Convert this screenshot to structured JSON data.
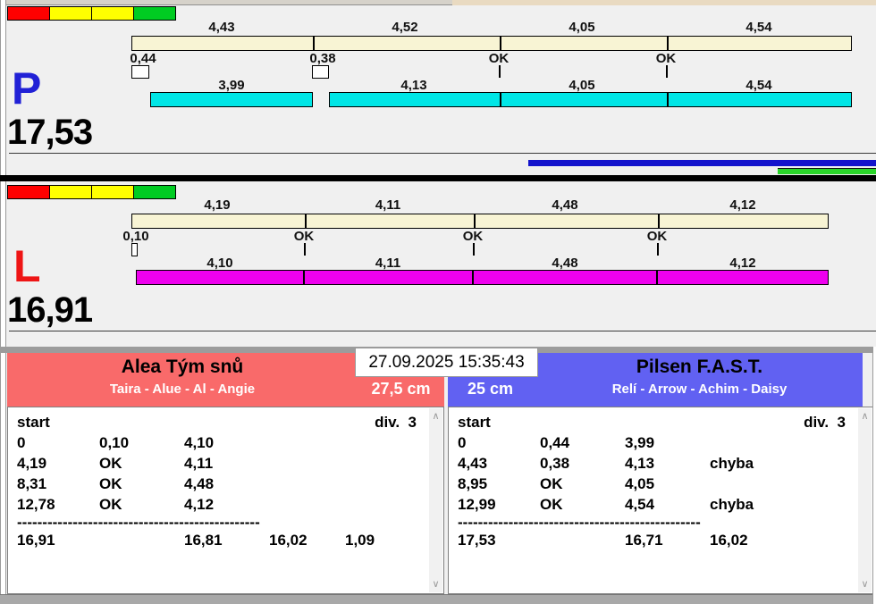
{
  "lanes": {
    "p": {
      "letter": "P",
      "total": "17,53",
      "split_labels": [
        "4,43",
        "4,52",
        "4,05",
        "4,54"
      ],
      "change_labels": [
        "0,44",
        "0,38",
        "OK",
        "OK"
      ],
      "leg_labels": [
        "3,99",
        "4,13",
        "4,05",
        "4,54"
      ],
      "bar_color": "#00e6e6",
      "traffic_lights": [
        "red",
        "yellow",
        "yellow",
        "green"
      ]
    },
    "l": {
      "letter": "L",
      "total": "16,91",
      "split_labels": [
        "4,19",
        "4,11",
        "4,48",
        "4,12"
      ],
      "change_labels": [
        "0,10",
        "OK",
        "OK",
        "OK"
      ],
      "leg_labels": [
        "4,10",
        "4,11",
        "4,48",
        "4,12"
      ],
      "bar_color": "#ee00ee",
      "traffic_lights": [
        "red",
        "yellow",
        "yellow",
        "green"
      ]
    }
  },
  "scoreboard": {
    "timestamp": "27.09.2025 15:35:43",
    "left_team": {
      "name": "Alea Tým snů",
      "dogs": "Taira - Alue - Al - Angie",
      "jump_height": "27,5 cm",
      "color": "#f96a6a"
    },
    "right_team": {
      "name": "Pilsen F.A.S.T.",
      "dogs": "Relí - Arrow - Achim - Daisy",
      "jump_height": "25 cm",
      "color": "#6161f2"
    }
  },
  "reports": {
    "left": {
      "start_label": "start",
      "division": "div.  3",
      "rows": [
        [
          "0",
          "0,10",
          "4,10",
          "",
          ""
        ],
        [
          "4,19",
          "OK",
          "4,11",
          "",
          ""
        ],
        [
          "8,31",
          "OK",
          "4,48",
          "",
          ""
        ],
        [
          "12,78",
          "OK",
          "4,12",
          "",
          ""
        ]
      ],
      "divider": "------------------------------------------------------",
      "totals": [
        "16,91",
        "",
        "16,81",
        "16,02",
        "1,09"
      ]
    },
    "right": {
      "start_label": "start",
      "division": "div.  3",
      "rows": [
        [
          "0",
          "0,44",
          "3,99",
          "",
          ""
        ],
        [
          "4,43",
          "0,38",
          "4,13",
          "chyba",
          ""
        ],
        [
          "8,95",
          "OK",
          "4,05",
          "",
          ""
        ],
        [
          "12,99",
          "OK",
          "4,54",
          "chyba",
          ""
        ]
      ],
      "divider": "------------------------------------------------------",
      "totals": [
        "17,53",
        "",
        "16,71",
        "16,02",
        ""
      ]
    }
  },
  "colors": {
    "lane_p_letter": "#2121d6",
    "lane_l_letter": "#ee1515",
    "split_bar": "#f8f4d4",
    "progress_blue": "#1313cc",
    "progress_green": "#2ad62a"
  }
}
